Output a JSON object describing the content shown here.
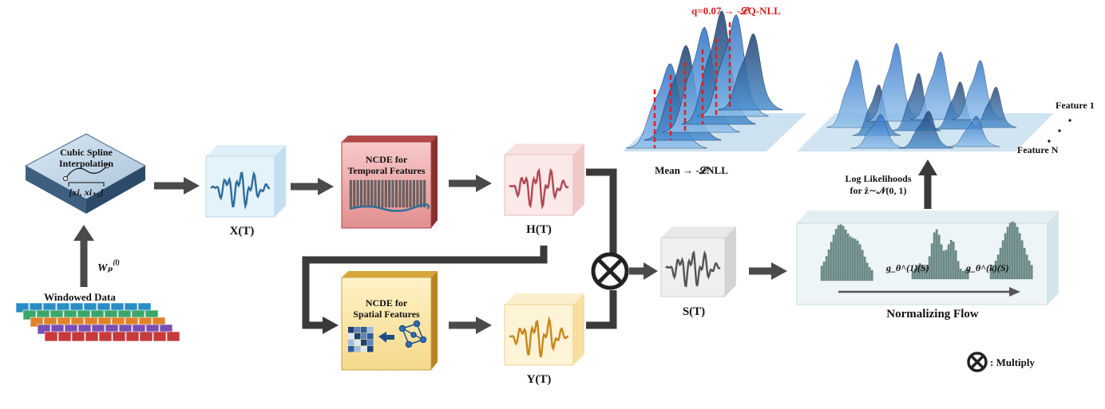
{
  "cubic_spline": {
    "title_line1": "Cubic Spline",
    "title_line2": "Interpolation",
    "interval": "[xi, xi₊₁]"
  },
  "windowed_data": {
    "label": "Windowed Data"
  },
  "weight": {
    "label": "Wₚ",
    "sup": "(l)"
  },
  "x_cube": {
    "label": "X(T)"
  },
  "h_cube": {
    "label": "H(T)"
  },
  "y_cube": {
    "label": "Y(T)"
  },
  "s_cube": {
    "label": "S(T)"
  },
  "ncde_temporal": {
    "line1": "NCDE for",
    "line2": "Temporal Features"
  },
  "ncde_spatial": {
    "line1": "NCDE for",
    "line2": "Spatial Features"
  },
  "qnll": {
    "label": "q=0.07 → -𝓛Q-NLL"
  },
  "mean_nll": {
    "label": "Mean → -𝓛NLL"
  },
  "features": {
    "first": "Feature 1",
    "last": "Feature N",
    "dots": "·  ·  ·"
  },
  "log_likelihood": {
    "line1": "Log Likelihoods",
    "line2": "for ẑ∼𝒩(0, 1)"
  },
  "normalizing_flow": {
    "title": "Normalizing Flow",
    "g1": "g_θ^(1)(S)",
    "gk": "g_θ^(k)(S)"
  },
  "legend": {
    "multiply": ": Multiply"
  },
  "colors": {
    "blue": "#2f6e9a",
    "red": "#c0404d",
    "orange": "#c8871a",
    "gray": "#555555",
    "dist": "#1f4f86",
    "dashed": "#e02020",
    "arrow": "#4a4a4a"
  }
}
